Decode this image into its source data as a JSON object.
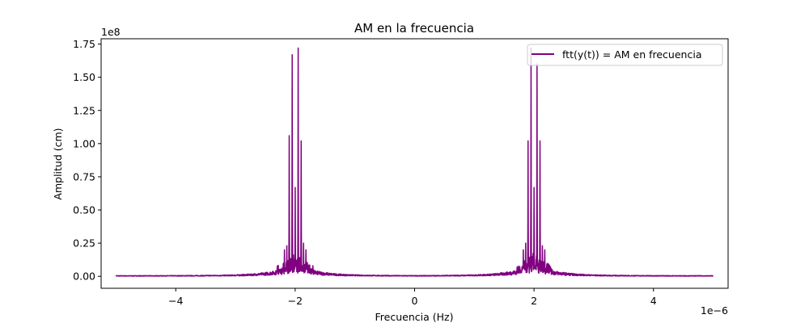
{
  "chart_data": {
    "type": "line",
    "title": "AM en la frecuencia",
    "xlabel": "Frecuencia (Hz)",
    "ylabel": "Amplitud (cm)",
    "x_scale_label": "1e−6",
    "y_scale_label": "1e8",
    "xlim": [
      -5.25,
      5.25
    ],
    "ylim": [
      -0.09,
      1.79
    ],
    "x_ticks": [
      -4,
      -2,
      0,
      2,
      4
    ],
    "x_tick_labels": [
      "−4",
      "−2",
      "0",
      "2",
      "4"
    ],
    "y_ticks": [
      0,
      0.25,
      0.5,
      0.75,
      1.0,
      1.25,
      1.5,
      1.75
    ],
    "y_tick_labels": [
      "0.00",
      "0.25",
      "0.50",
      "0.75",
      "1.00",
      "1.25",
      "1.50",
      "1.75"
    ],
    "grid": false,
    "legend_position": "top-right",
    "series": [
      {
        "name": "ftt(y(t)) = AM en frecuencia",
        "color": "#800080",
        "x_range": [
          -5,
          5
        ],
        "noise_floor": 0.005,
        "peaks": [
          {
            "x": -2.1,
            "y": 1.06
          },
          {
            "x": -2.05,
            "y": 1.67
          },
          {
            "x": -2.0,
            "y": 0.67
          },
          {
            "x": -1.95,
            "y": 1.72
          },
          {
            "x": -1.9,
            "y": 1.02
          },
          {
            "x": -2.18,
            "y": 0.2
          },
          {
            "x": -2.14,
            "y": 0.23
          },
          {
            "x": -1.86,
            "y": 0.25
          },
          {
            "x": -1.82,
            "y": 0.2
          },
          {
            "x": 1.9,
            "y": 1.02
          },
          {
            "x": 1.95,
            "y": 1.72
          },
          {
            "x": 2.0,
            "y": 0.67
          },
          {
            "x": 2.05,
            "y": 1.6
          },
          {
            "x": 2.1,
            "y": 1.02
          },
          {
            "x": 1.82,
            "y": 0.2
          },
          {
            "x": 1.86,
            "y": 0.25
          },
          {
            "x": 2.14,
            "y": 0.23
          },
          {
            "x": 2.18,
            "y": 0.2
          }
        ]
      }
    ]
  }
}
